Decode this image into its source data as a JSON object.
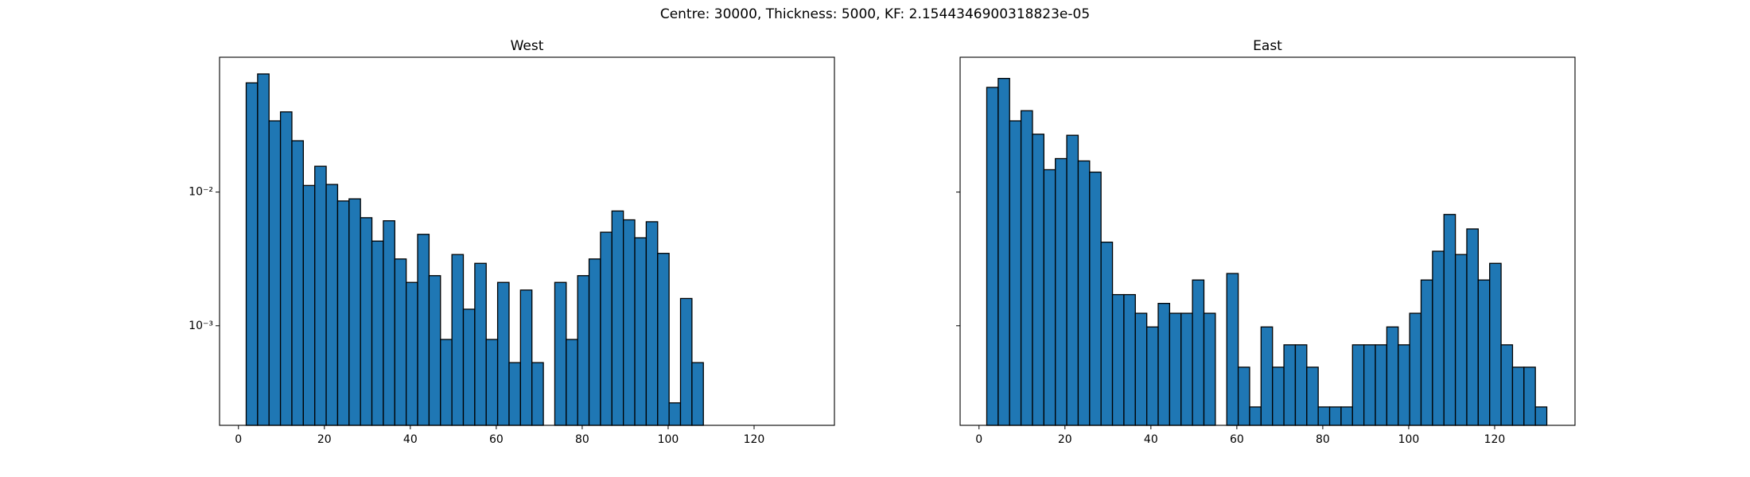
{
  "title": "Centre: 30000, Thickness: 5000, KF: 2.1544346900318823e-05",
  "chart_data": [
    {
      "type": "histogram",
      "title": "West",
      "color": "#1f77b4",
      "edgecolor": "#000000",
      "log_y": true,
      "bins": [
        1.8,
        4.46,
        7.12,
        9.78,
        12.44,
        15.1,
        17.76,
        20.42,
        23.08,
        25.74,
        28.4,
        31.06,
        33.72,
        36.38,
        39.04,
        41.7,
        44.36,
        47.02,
        49.68,
        52.34,
        55,
        57.66,
        60.32,
        62.98,
        65.64,
        68.3,
        70.96,
        73.62,
        76.28,
        78.94,
        81.6,
        84.26,
        86.92,
        89.58,
        92.24,
        94.9,
        97.56,
        100.22,
        102.88,
        105.54,
        108.2
      ],
      "values": [
        0.0656,
        0.0765,
        0.0341,
        0.0398,
        0.0242,
        0.0112,
        0.0156,
        0.0114,
        0.00858,
        0.0089,
        0.00643,
        0.0043,
        0.0061,
        0.00316,
        0.00211,
        0.00483,
        0.00237,
        0.00079,
        0.00341,
        0.00133,
        0.00293,
        0.00079,
        0.00211,
        0.00053,
        0.00185,
        0.00053,
        0,
        0.00211,
        0.00079,
        0.00237,
        0.00316,
        0.00501,
        0.00722,
        0.0062,
        0.00455,
        0.006,
        0.00348,
        0.000265,
        0.0016,
        0.00053
      ],
      "xlim": [
        -4.4,
        138.7
      ],
      "xticks": [
        0,
        20,
        40,
        60,
        80,
        100,
        120
      ],
      "ylim": [
        0.00018,
        0.102
      ],
      "yticks": [
        {
          "value": 0.001,
          "label": "10⁻³"
        },
        {
          "value": 0.01,
          "label": "10⁻²"
        }
      ]
    },
    {
      "type": "histogram",
      "title": "East",
      "color": "#1f77b4",
      "edgecolor": "#000000",
      "log_y": true,
      "bins": [
        1.8,
        4.46,
        7.12,
        9.78,
        12.44,
        15.1,
        17.76,
        20.42,
        23.08,
        25.74,
        28.4,
        31.06,
        33.72,
        36.38,
        39.04,
        41.7,
        44.36,
        47.02,
        49.68,
        52.34,
        55,
        57.66,
        60.32,
        62.98,
        65.64,
        68.3,
        70.96,
        73.62,
        76.28,
        78.94,
        81.6,
        84.26,
        86.92,
        89.58,
        92.24,
        94.9,
        97.56,
        100.22,
        102.88,
        105.54,
        108.2,
        110.86,
        113.52,
        116.18,
        118.84,
        121.5,
        124.16,
        126.82,
        129.48,
        132.14
      ],
      "values": [
        0.0607,
        0.0708,
        0.0341,
        0.0406,
        0.0271,
        0.0147,
        0.0178,
        0.0266,
        0.0171,
        0.0141,
        0.00422,
        0.00171,
        0.00171,
        0.00124,
        0.00098,
        0.00147,
        0.00124,
        0.00124,
        0.0022,
        0.00124,
        0,
        0.00246,
        0.00049,
        0.000247,
        0.00098,
        0.00049,
        0.00072,
        0.00072,
        0.00049,
        0.000247,
        0.000247,
        0.000247,
        0.00072,
        0.00072,
        0.00072,
        0.00098,
        0.00072,
        0.00124,
        0.0022,
        0.00361,
        0.0068,
        0.00341,
        0.0053,
        0.0022,
        0.00293,
        0.00072,
        0.00049,
        0.00049,
        0.000247
      ],
      "xlim": [
        -4.4,
        138.7
      ],
      "xticks": [
        0,
        20,
        40,
        60,
        80,
        100,
        120
      ],
      "ylim": [
        0.00018,
        0.102
      ],
      "yticks": [
        {
          "value": 0.001,
          "label": "10⁻³"
        },
        {
          "value": 0.01,
          "label": "10⁻²"
        }
      ]
    }
  ]
}
